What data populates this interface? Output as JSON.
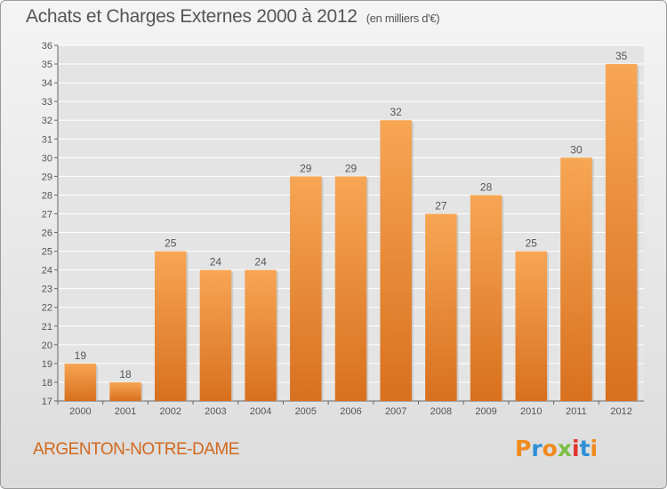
{
  "header": {
    "title": "Achats et Charges Externes 2000 à 2012",
    "unit": "(en milliers d'€)"
  },
  "footer": {
    "place": "ARGENTON-NOTRE-DAME",
    "logo_text": "Proxiti",
    "logo_colors": [
      "#f08a1c",
      "#2f8fd8",
      "#f08a1c",
      "#7ac043",
      "#e3342f",
      "#2f8fd8",
      "#f08a1c"
    ]
  },
  "colors": {
    "bar_top": "#f7a654",
    "bar_bottom": "#d8701e",
    "grid": "#ffffff",
    "axis": "#666666",
    "text": "#555555",
    "plot_bg": "#e4e4e4"
  },
  "chart_data": {
    "type": "bar",
    "title": "Achats et Charges Externes 2000 à 2012",
    "subtitle": "(en milliers d'€)",
    "categories": [
      "2000",
      "2001",
      "2002",
      "2003",
      "2004",
      "2005",
      "2006",
      "2007",
      "2008",
      "2009",
      "2010",
      "2011",
      "2012"
    ],
    "values": [
      19,
      18,
      25,
      24,
      24,
      29,
      29,
      32,
      27,
      28,
      25,
      30,
      35
    ],
    "ylim": [
      17,
      36
    ],
    "yticks": [
      17,
      18,
      19,
      20,
      21,
      22,
      23,
      24,
      25,
      26,
      27,
      28,
      29,
      30,
      31,
      32,
      33,
      34,
      35,
      36
    ],
    "grid": true,
    "data_labels": true
  }
}
